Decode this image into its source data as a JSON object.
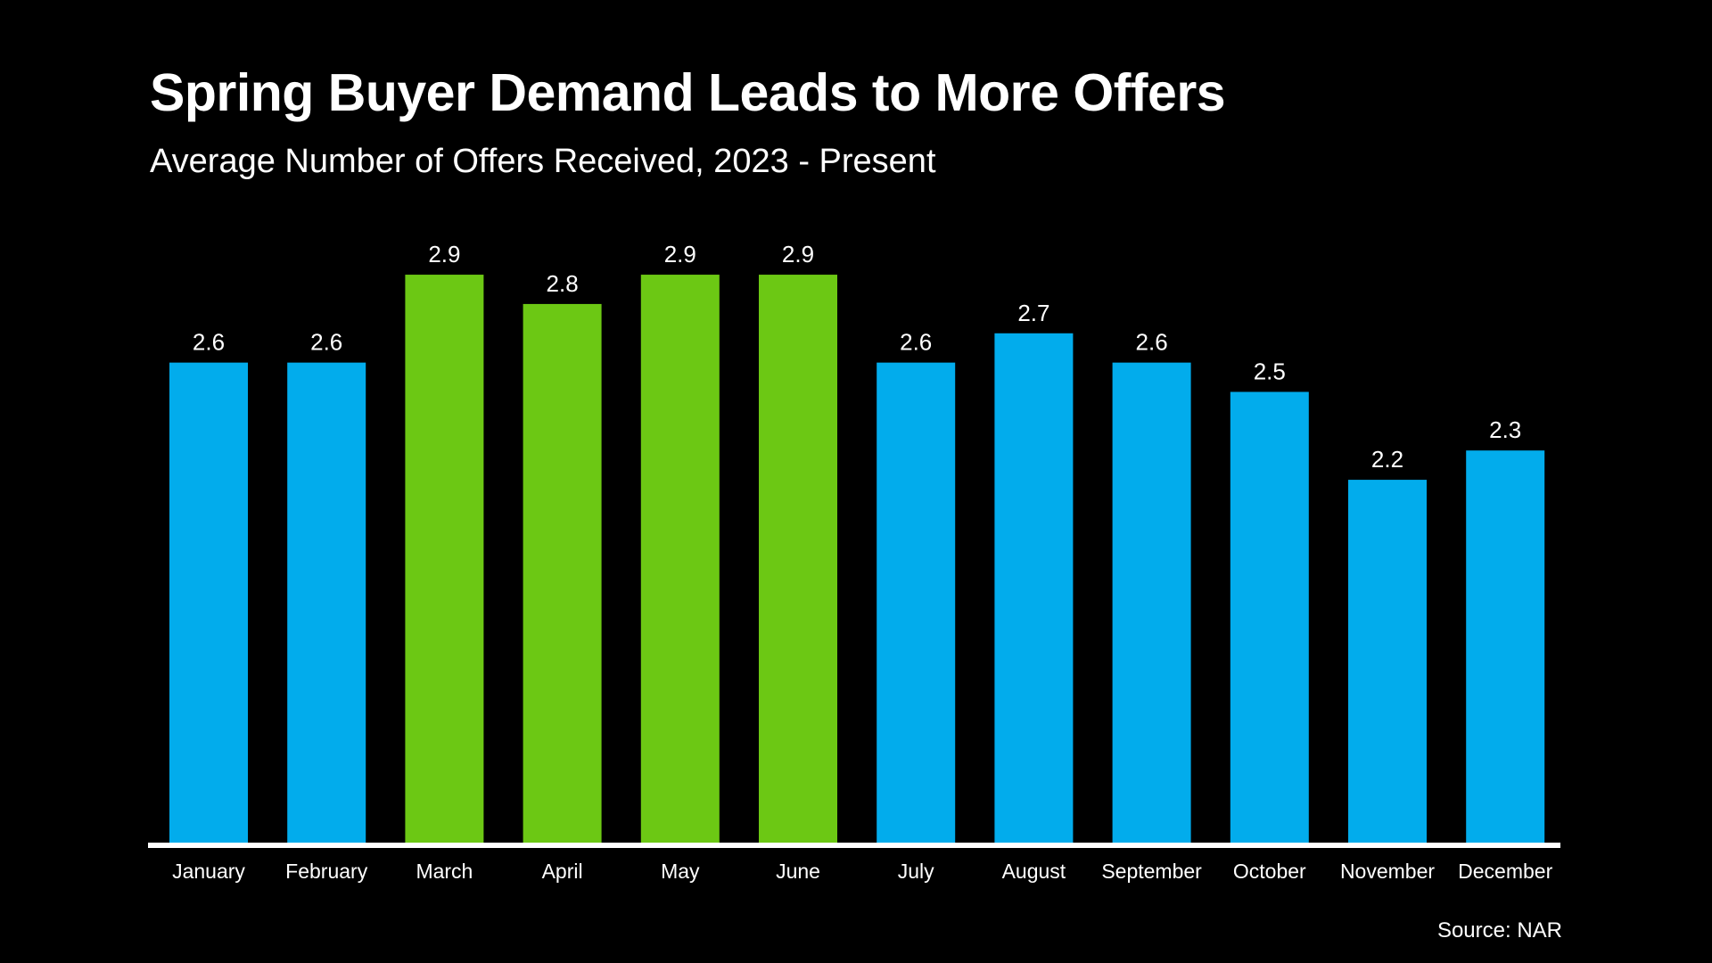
{
  "title": "Spring Buyer Demand Leads to More Offers",
  "subtitle": "Average Number of Offers Received, 2023 - Present",
  "source": "Source: NAR",
  "colors": {
    "background": "#000000",
    "default_bar": "#02acec",
    "spring_bar": "#6cc814",
    "axis": "#ffffff",
    "text": "#ffffff"
  },
  "chart_data": {
    "type": "bar",
    "categories": [
      "January",
      "February",
      "March",
      "April",
      "May",
      "June",
      "July",
      "August",
      "September",
      "October",
      "November",
      "December"
    ],
    "values": [
      2.6,
      2.6,
      2.9,
      2.8,
      2.9,
      2.9,
      2.6,
      2.7,
      2.6,
      2.5,
      2.2,
      2.3
    ],
    "value_labels": [
      "2.6",
      "2.6",
      "2.9",
      "2.8",
      "2.9",
      "2.9",
      "2.6",
      "2.7",
      "2.6",
      "2.5",
      "2.2",
      "2.3"
    ],
    "highlighted": [
      "March",
      "April",
      "May",
      "June"
    ],
    "title": "Spring Buyer Demand Leads to More Offers",
    "xlabel": "",
    "ylabel": "",
    "grid": false,
    "legend": "none"
  }
}
